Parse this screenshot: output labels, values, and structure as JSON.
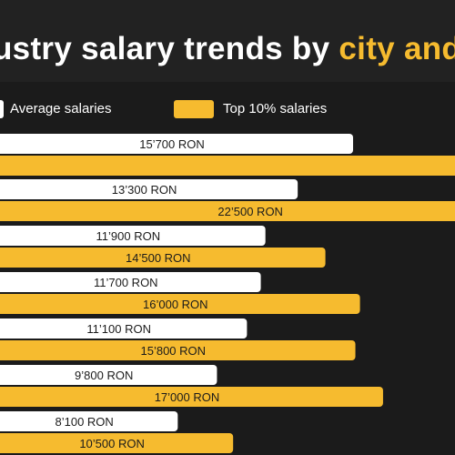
{
  "title": {
    "text_start": "ustry salary trends by ",
    "text_highlight": "city and"
  },
  "colors": {
    "background": "#1b1b1b",
    "average_bar": "#ffffff",
    "top10_bar": "#f6bb2f",
    "label_text": "#1b1b1b",
    "highlight": "#f6bb2f"
  },
  "chart_data": {
    "type": "bar",
    "orientation": "horizontal",
    "title": "ustry salary trends by city and",
    "series": [
      {
        "name": "Average salaries",
        "values": [
          15700,
          13300,
          11900,
          11700,
          11100,
          9800,
          8100
        ],
        "labels": [
          "15’700 RON",
          "13’300 RON",
          "11’900 RON",
          "11’700 RON",
          "11’100 RON",
          "9’800 RON",
          "8’100 RON"
        ]
      },
      {
        "name": "Top 10% salaries",
        "values": [
          26000,
          22500,
          14500,
          16000,
          15800,
          17000,
          10500
        ],
        "labels": [
          "",
          "22’500 RON",
          "14’500 RON",
          "16’000 RON",
          "15’800 RON",
          "17’000 RON",
          "10’500 RON"
        ]
      }
    ],
    "legend": [
      "Average salaries",
      "Top 10% salaries"
    ],
    "legend_position": "top"
  }
}
